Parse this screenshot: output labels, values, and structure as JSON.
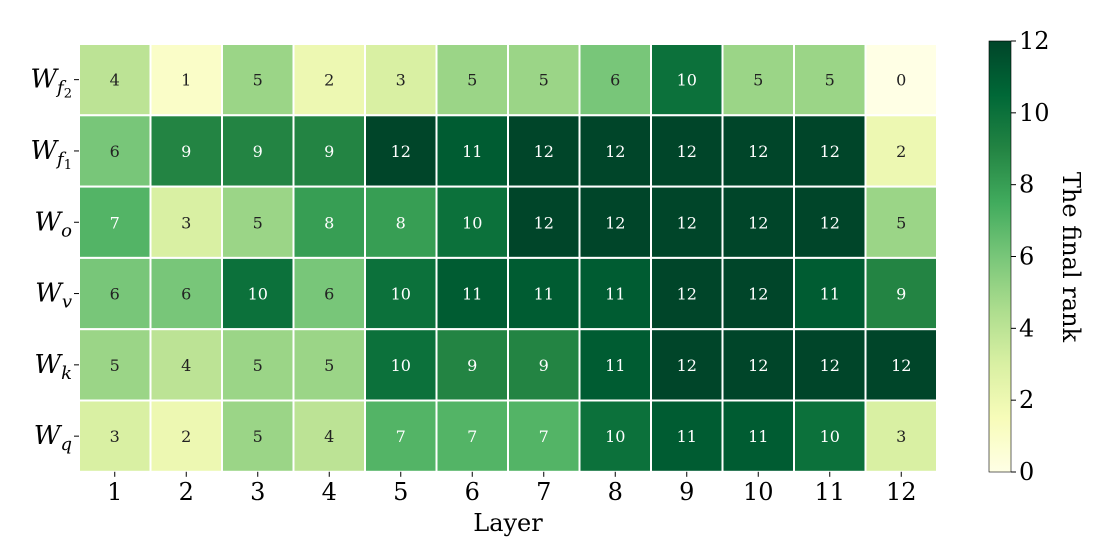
{
  "chart_data": {
    "type": "heatmap",
    "xlabel": "Layer",
    "ylabel": "",
    "x_ticks": [
      "1",
      "2",
      "3",
      "4",
      "5",
      "6",
      "7",
      "8",
      "9",
      "10",
      "11",
      "12"
    ],
    "y_ticks": [
      {
        "base": "W",
        "sub": "f",
        "subsub": "2"
      },
      {
        "base": "W",
        "sub": "f",
        "subsub": "1"
      },
      {
        "base": "W",
        "sub": "o",
        "subsub": ""
      },
      {
        "base": "W",
        "sub": "v",
        "subsub": ""
      },
      {
        "base": "W",
        "sub": "k",
        "subsub": ""
      },
      {
        "base": "W",
        "sub": "q",
        "subsub": ""
      }
    ],
    "values": [
      [
        4,
        1,
        5,
        2,
        3,
        5,
        5,
        6,
        10,
        5,
        5,
        0
      ],
      [
        6,
        9,
        9,
        9,
        12,
        11,
        12,
        12,
        12,
        12,
        12,
        2
      ],
      [
        7,
        3,
        5,
        8,
        8,
        10,
        12,
        12,
        12,
        12,
        12,
        5
      ],
      [
        6,
        6,
        10,
        6,
        10,
        11,
        11,
        11,
        12,
        12,
        11,
        9
      ],
      [
        5,
        4,
        5,
        5,
        10,
        9,
        9,
        11,
        12,
        12,
        12,
        12
      ],
      [
        3,
        2,
        5,
        4,
        7,
        7,
        7,
        10,
        11,
        11,
        10,
        3
      ]
    ],
    "colorbar": {
      "label": "The final rank",
      "min": 0,
      "max": 12,
      "ticks": [
        "0",
        "2",
        "4",
        "6",
        "8",
        "10",
        "12"
      ],
      "colormap": "Greens"
    }
  },
  "colors": {
    "cell_border": "#ffffff",
    "text_dark": "#222222",
    "text_light": "#ffffff",
    "axis": "#000000"
  }
}
